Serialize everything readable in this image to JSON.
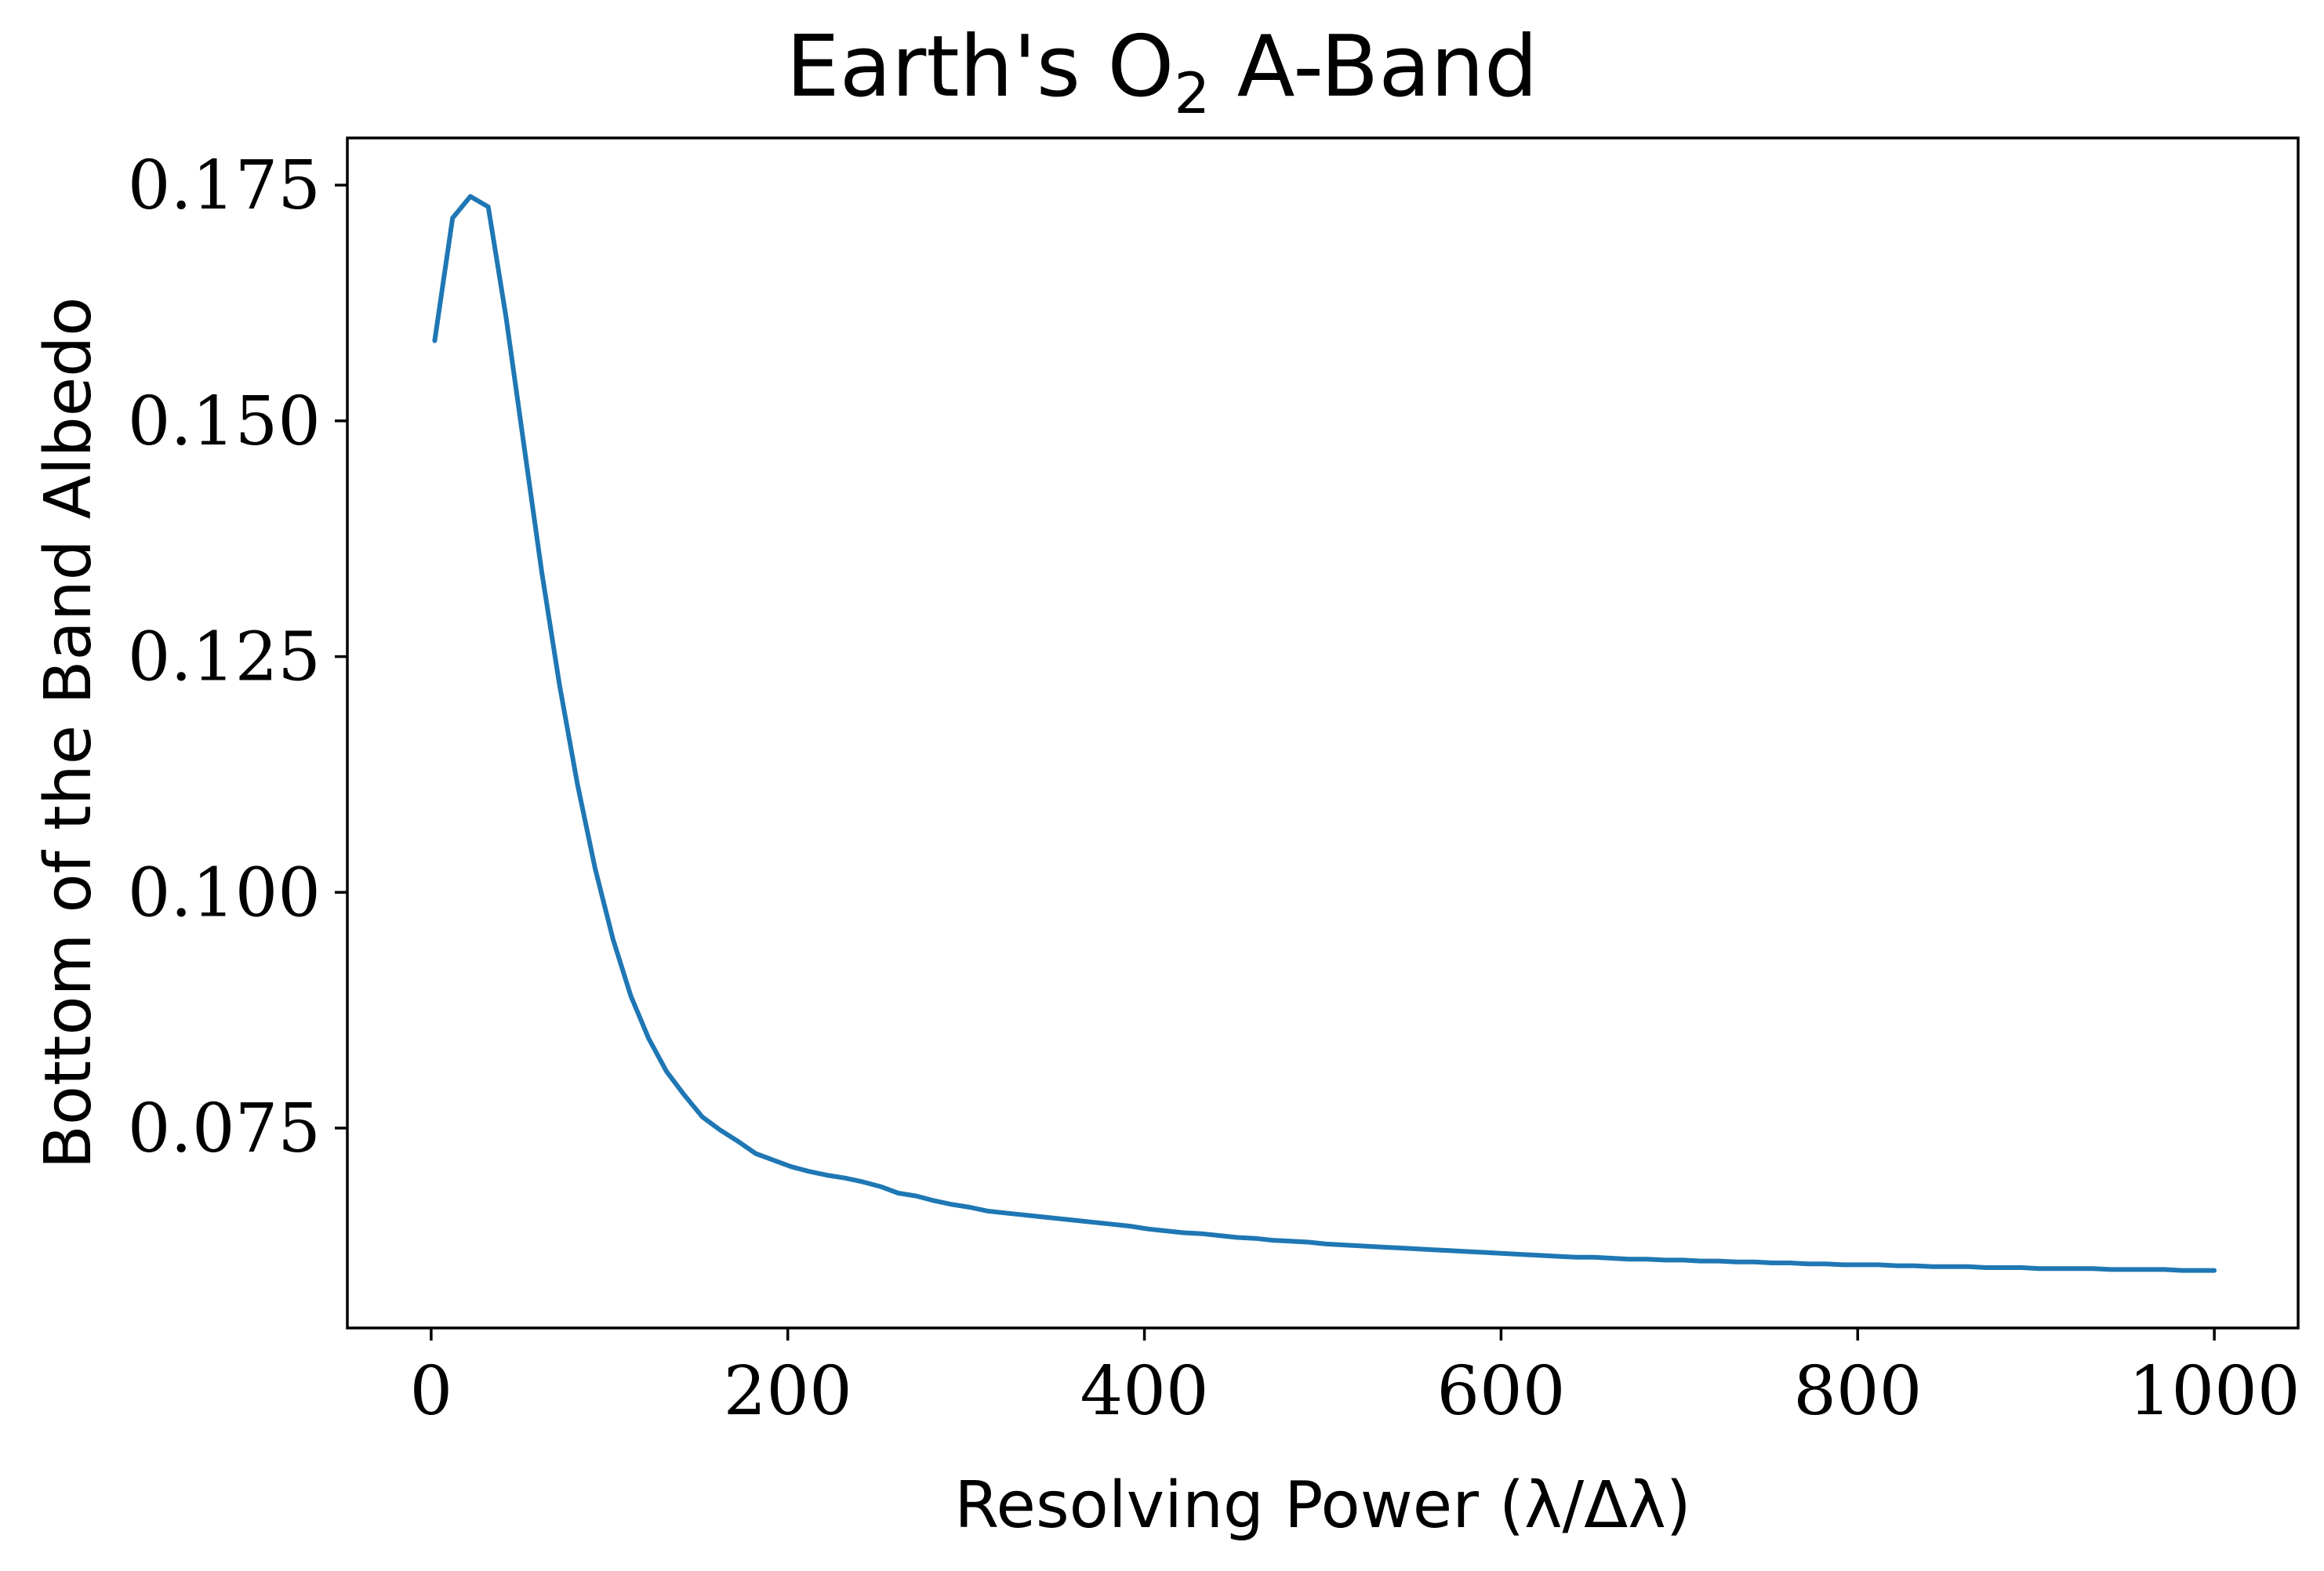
{
  "chart_data": {
    "type": "line",
    "title": "Earth's O",
    "title_subscript": "2",
    "title_suffix": " A-Band",
    "xlabel": "Resolving Power (λ/Δλ)",
    "ylabel": "Bottom of the Band Albedo",
    "xlim": [
      -47,
      1047
    ],
    "ylim": [
      0.0538,
      0.18
    ],
    "xticks": [
      0,
      200,
      400,
      600,
      800,
      1000
    ],
    "xtick_labels": [
      "0",
      "200",
      "400",
      "600",
      "800",
      "1000"
    ],
    "yticks": [
      0.075,
      0.1,
      0.125,
      0.15,
      0.175
    ],
    "ytick_labels": [
      "0.075",
      "0.100",
      "0.125",
      "0.150",
      "0.175"
    ],
    "grid": false,
    "series": [
      {
        "color": "#1f77b4",
        "x": [
          2,
          12,
          22,
          32,
          42,
          52,
          62,
          72,
          82,
          92,
          102,
          112,
          122,
          132,
          142,
          152,
          162,
          172,
          182,
          192,
          202,
          212,
          222,
          232,
          242,
          252,
          262,
          272,
          282,
          292,
          302,
          312,
          322,
          332,
          342,
          352,
          362,
          372,
          382,
          392,
          402,
          412,
          422,
          432,
          442,
          452,
          462,
          472,
          482,
          492,
          502,
          512,
          522,
          532,
          542,
          552,
          562,
          572,
          582,
          592,
          602,
          612,
          622,
          632,
          642,
          652,
          662,
          672,
          682,
          692,
          702,
          712,
          722,
          732,
          742,
          752,
          762,
          772,
          782,
          792,
          802,
          812,
          822,
          832,
          842,
          852,
          862,
          872,
          882,
          892,
          902,
          912,
          922,
          932,
          942,
          952,
          962,
          972,
          982,
          992,
          1000
        ],
        "y": [
          0.1585,
          0.1715,
          0.1738,
          0.1727,
          0.161,
          0.1475,
          0.134,
          0.122,
          0.1115,
          0.1025,
          0.095,
          0.089,
          0.0845,
          0.081,
          0.0785,
          0.0762,
          0.0748,
          0.0736,
          0.0723,
          0.0716,
          0.0709,
          0.0704,
          0.07,
          0.0697,
          0.0693,
          0.0688,
          0.0681,
          0.0678,
          0.0673,
          0.0669,
          0.0666,
          0.0662,
          0.066,
          0.0658,
          0.0656,
          0.0654,
          0.0652,
          0.065,
          0.0648,
          0.0646,
          0.0643,
          0.0641,
          0.0639,
          0.0638,
          0.0636,
          0.0634,
          0.0633,
          0.0631,
          0.063,
          0.0629,
          0.0627,
          0.0626,
          0.0625,
          0.0624,
          0.0623,
          0.0622,
          0.0621,
          0.062,
          0.0619,
          0.0618,
          0.0617,
          0.0616,
          0.0615,
          0.0614,
          0.0613,
          0.0613,
          0.0612,
          0.0611,
          0.0611,
          0.061,
          0.061,
          0.0609,
          0.0609,
          0.0608,
          0.0608,
          0.0607,
          0.0607,
          0.0606,
          0.0606,
          0.0605,
          0.0605,
          0.0605,
          0.0604,
          0.0604,
          0.0603,
          0.0603,
          0.0603,
          0.0602,
          0.0602,
          0.0602,
          0.0601,
          0.0601,
          0.0601,
          0.0601,
          0.06,
          0.06,
          0.06,
          0.06,
          0.0599,
          0.0599,
          0.0599
        ]
      }
    ]
  }
}
